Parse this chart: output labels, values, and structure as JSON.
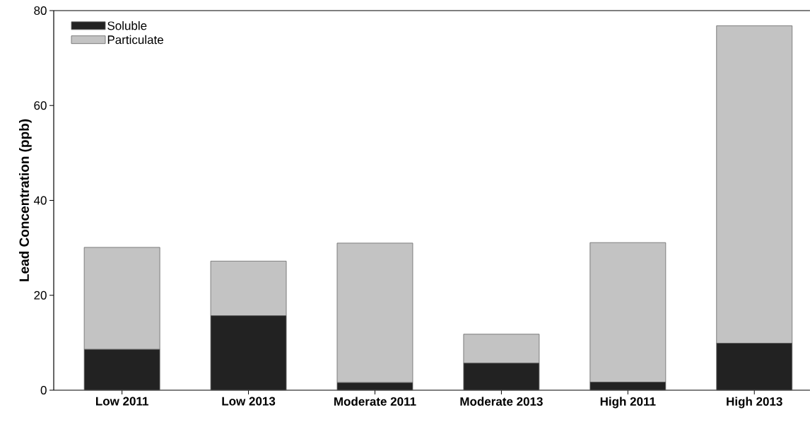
{
  "chart_data": {
    "type": "bar",
    "stacked": true,
    "ylabel": "Lead Concentration (ppb)",
    "categories": [
      "Low 2011",
      "Low 2013",
      "Moderate 2011",
      "Moderate 2013",
      "High 2011",
      "High 2013"
    ],
    "series": [
      {
        "name": "Soluble",
        "color": "#222222",
        "values": [
          8.6,
          15.7,
          1.6,
          5.7,
          1.7,
          9.9
        ]
      },
      {
        "name": "Particulate",
        "color": "#c3c3c3",
        "values": [
          21.5,
          11.5,
          29.4,
          6.1,
          29.4,
          66.9
        ]
      }
    ],
    "ylim": [
      0,
      80
    ],
    "yticks": [
      0,
      20,
      40,
      60,
      80
    ],
    "legend": "top left"
  }
}
